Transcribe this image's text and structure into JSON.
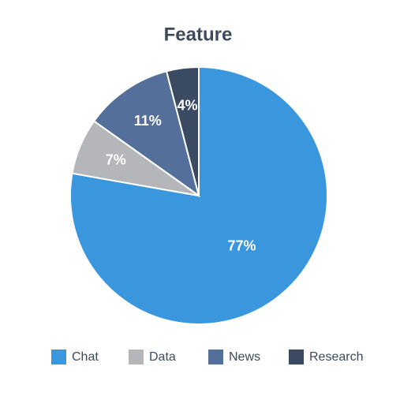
{
  "chart_data": {
    "type": "pie",
    "title": "Feature",
    "categories": [
      "Chat",
      "Data",
      "News",
      "Research"
    ],
    "values": [
      77,
      7,
      11,
      4
    ],
    "value_labels": [
      "77%",
      "7%",
      "11%",
      "4%"
    ],
    "colors": [
      "#3a97dd",
      "#b5b6b9",
      "#54709a",
      "#3b4a63"
    ],
    "legend": "bottom"
  }
}
